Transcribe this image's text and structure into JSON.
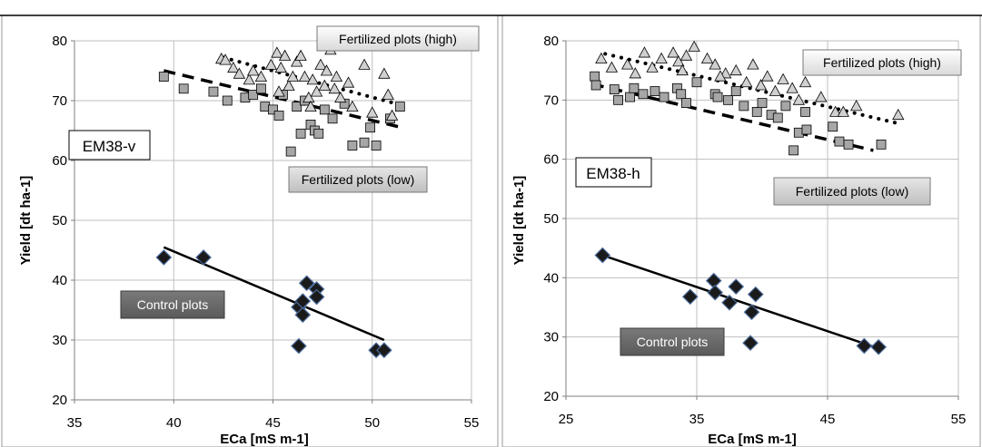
{
  "chart_data": [
    {
      "type": "scatter",
      "xlabel": "ECa [mS m-1]",
      "ylabel": "Yield [dt ha-1]",
      "xlim": [
        35,
        55
      ],
      "ylim": [
        20,
        80
      ],
      "xticks": [
        35,
        40,
        45,
        50,
        55
      ],
      "yticks": [
        20,
        30,
        40,
        50,
        60,
        70,
        80
      ],
      "grid": true,
      "annotations": {
        "sensor": "EM38-v",
        "high": "Fertilized plots (high)",
        "low": "Fertilized plots (low)",
        "control": "Control plots"
      },
      "series": [
        {
          "key": "high",
          "marker": "triangle",
          "fill": "#d0d0d0",
          "points": [
            [
              42.4,
              77
            ],
            [
              42.6,
              76.8
            ],
            [
              43,
              75.5
            ],
            [
              43.3,
              74.5
            ],
            [
              43.8,
              73.5
            ],
            [
              44,
              75
            ],
            [
              44.4,
              74
            ],
            [
              44.9,
              76
            ],
            [
              45.2,
              78
            ],
            [
              45.4,
              75.5
            ],
            [
              45.6,
              77.5
            ],
            [
              45.8,
              72.5
            ],
            [
              46,
              74
            ],
            [
              46.2,
              76.5
            ],
            [
              46.4,
              77.5
            ],
            [
              46.6,
              74
            ],
            [
              46.8,
              70.5
            ],
            [
              47,
              73.5
            ],
            [
              47.2,
              71.5
            ],
            [
              47.4,
              76
            ],
            [
              47.6,
              72.5
            ],
            [
              47.9,
              78.5
            ],
            [
              48.2,
              74
            ],
            [
              48.4,
              70.5
            ],
            [
              48.8,
              73
            ],
            [
              49,
              69
            ],
            [
              49.6,
              76
            ],
            [
              50,
              68
            ],
            [
              50.6,
              74.5
            ],
            [
              50.8,
              71
            ],
            [
              51,
              67.5
            ],
            [
              45.3,
              71.5
            ],
            [
              46.9,
              69
            ],
            [
              47.7,
              75
            ],
            [
              48.1,
              72
            ]
          ]
        },
        {
          "key": "low",
          "marker": "square",
          "fill": "#a6a6a6",
          "points": [
            [
              39.5,
              74
            ],
            [
              40.5,
              72
            ],
            [
              42,
              71.5
            ],
            [
              42.7,
              70
            ],
            [
              43.6,
              70.5
            ],
            [
              44,
              71
            ],
            [
              44.4,
              72
            ],
            [
              44.6,
              69
            ],
            [
              45,
              68.5
            ],
            [
              45.3,
              67.5
            ],
            [
              45.5,
              71
            ],
            [
              45.9,
              61.5
            ],
            [
              46.2,
              69
            ],
            [
              46.4,
              64.5
            ],
            [
              46.6,
              70
            ],
            [
              46.9,
              66
            ],
            [
              47.1,
              65
            ],
            [
              47.3,
              64.5
            ],
            [
              47.6,
              68.5
            ],
            [
              48,
              67
            ],
            [
              48.6,
              69.5
            ],
            [
              49,
              62.5
            ],
            [
              49.6,
              63
            ],
            [
              49.9,
              65.5
            ],
            [
              50.2,
              62.5
            ],
            [
              50.9,
              67
            ],
            [
              51.4,
              69
            ]
          ]
        },
        {
          "key": "control",
          "marker": "diamond",
          "fill": "#1a1a1a",
          "points": [
            [
              39.5,
              43.8
            ],
            [
              41.5,
              43.8
            ],
            [
              46.3,
              35.5
            ],
            [
              46.5,
              34.2
            ],
            [
              46.5,
              36.5
            ],
            [
              46.7,
              39.5
            ],
            [
              47.2,
              38.5
            ],
            [
              47.2,
              37.2
            ],
            [
              46.3,
              29
            ],
            [
              50.2,
              28.3
            ],
            [
              50.6,
              28.3
            ]
          ]
        }
      ],
      "trendlines": [
        {
          "key": "high",
          "style": "dotted",
          "from": [
            42.5,
            77.2
          ],
          "to": [
            51.2,
            69.5
          ]
        },
        {
          "key": "low",
          "style": "dashed",
          "from": [
            39.5,
            75
          ],
          "to": [
            51.5,
            65.5
          ]
        },
        {
          "key": "control",
          "style": "solid",
          "from": [
            39.5,
            45.5
          ],
          "to": [
            50.6,
            30
          ]
        }
      ]
    },
    {
      "type": "scatter",
      "xlabel": "ECa [mS m-1]",
      "ylabel": "Yield [dt ha-1]",
      "xlim": [
        25,
        55
      ],
      "ylim": [
        20,
        80
      ],
      "xticks": [
        25,
        35,
        45,
        55
      ],
      "yticks": [
        20,
        30,
        40,
        50,
        60,
        70,
        80
      ],
      "grid": true,
      "annotations": {
        "sensor": "EM38-h",
        "high": "Fertilized plots (high)",
        "low": "Fertilized plots (low)",
        "control": "Control plots"
      },
      "series": [
        {
          "key": "high",
          "marker": "triangle",
          "fill": "#d0d0d0",
          "points": [
            [
              27.7,
              77
            ],
            [
              28.5,
              75.5
            ],
            [
              29.7,
              76
            ],
            [
              30.3,
              74.5
            ],
            [
              31,
              78
            ],
            [
              31.6,
              75.5
            ],
            [
              32.3,
              77
            ],
            [
              33.2,
              78
            ],
            [
              33.6,
              76.5
            ],
            [
              34.2,
              77.5
            ],
            [
              34.8,
              79
            ],
            [
              35.8,
              77
            ],
            [
              36.4,
              76
            ],
            [
              37.2,
              74.5
            ],
            [
              38,
              75
            ],
            [
              38.8,
              73
            ],
            [
              39.3,
              76
            ],
            [
              39.9,
              72.5
            ],
            [
              40.4,
              74
            ],
            [
              41,
              71.5
            ],
            [
              41.6,
              73.5
            ],
            [
              42.3,
              72
            ],
            [
              42.8,
              70
            ],
            [
              43.3,
              73
            ],
            [
              44.5,
              70.5
            ],
            [
              45.6,
              68
            ],
            [
              46.2,
              68
            ],
            [
              47.2,
              69
            ],
            [
              50.4,
              67.5
            ],
            [
              36.8,
              74
            ],
            [
              33.9,
              75
            ]
          ]
        },
        {
          "key": "low",
          "marker": "square",
          "fill": "#a6a6a6",
          "points": [
            [
              27.2,
              74
            ],
            [
              27.3,
              72.5
            ],
            [
              28.7,
              71.8
            ],
            [
              29,
              70
            ],
            [
              29.9,
              70.5
            ],
            [
              30.2,
              72
            ],
            [
              30.9,
              71
            ],
            [
              31.8,
              71.5
            ],
            [
              32.5,
              70.5
            ],
            [
              33.5,
              72
            ],
            [
              33.8,
              71
            ],
            [
              34.2,
              69.5
            ],
            [
              35,
              73
            ],
            [
              36.4,
              71
            ],
            [
              36.6,
              70.5
            ],
            [
              37.4,
              70
            ],
            [
              38,
              71.5
            ],
            [
              38.6,
              69
            ],
            [
              39.6,
              68
            ],
            [
              40,
              69.5
            ],
            [
              40.7,
              67.5
            ],
            [
              41.2,
              67
            ],
            [
              41.8,
              69
            ],
            [
              42.4,
              61.5
            ],
            [
              42.8,
              64.5
            ],
            [
              43.3,
              68
            ],
            [
              43.4,
              65
            ],
            [
              45.4,
              65.5
            ],
            [
              45.9,
              63
            ],
            [
              46.6,
              62.5
            ],
            [
              49.1,
              62.5
            ]
          ]
        },
        {
          "key": "control",
          "marker": "diamond",
          "fill": "#1a1a1a",
          "points": [
            [
              27.8,
              43.8
            ],
            [
              34.5,
              36.8
            ],
            [
              36.3,
              39.5
            ],
            [
              36.4,
              37.5
            ],
            [
              37.5,
              35.8
            ],
            [
              38,
              38.5
            ],
            [
              39.1,
              29
            ],
            [
              39.2,
              34.2
            ],
            [
              39.5,
              37.2
            ],
            [
              47.8,
              28.5
            ],
            [
              48.9,
              28.3
            ]
          ]
        }
      ],
      "trendlines": [
        {
          "key": "high",
          "style": "dotted",
          "from": [
            28,
            77.8
          ],
          "to": [
            50.5,
            66
          ]
        },
        {
          "key": "low",
          "style": "dashed",
          "from": [
            27,
            72.7
          ],
          "to": [
            48.5,
            61.5
          ]
        },
        {
          "key": "control",
          "style": "solid",
          "from": [
            27.8,
            43.8
          ],
          "to": [
            49,
            28
          ]
        }
      ]
    }
  ]
}
